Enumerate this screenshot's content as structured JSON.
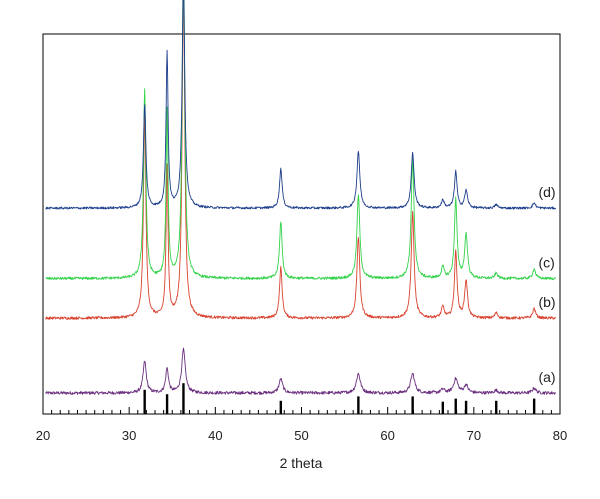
{
  "chart_data": {
    "type": "line",
    "title": "",
    "xlabel": "2 theta",
    "ylabel": "",
    "xlim": [
      20,
      80
    ],
    "x_ticks": [
      20,
      30,
      40,
      50,
      60,
      70,
      80
    ],
    "x_minor_step": 1,
    "y_ticks_shown": false,
    "grid": false,
    "legend": "labels at right end of each trace",
    "series": [
      {
        "name": "(a)",
        "color": "#6b2f7f",
        "baseline": 0.0,
        "noise": 0.0035,
        "peaks": [
          {
            "x": 31.8,
            "h": 0.072,
            "w": 0.22
          },
          {
            "x": 34.4,
            "h": 0.055,
            "w": 0.2
          },
          {
            "x": 36.3,
            "h": 0.098,
            "w": 0.25
          },
          {
            "x": 47.6,
            "h": 0.032,
            "w": 0.25
          },
          {
            "x": 56.6,
            "h": 0.044,
            "w": 0.28
          },
          {
            "x": 62.9,
            "h": 0.044,
            "w": 0.28
          },
          {
            "x": 66.4,
            "h": 0.008,
            "w": 0.25
          },
          {
            "x": 67.9,
            "h": 0.032,
            "w": 0.3
          },
          {
            "x": 69.1,
            "h": 0.018,
            "w": 0.25
          },
          {
            "x": 72.6,
            "h": 0.006,
            "w": 0.25
          },
          {
            "x": 77.0,
            "h": 0.011,
            "w": 0.25
          }
        ]
      },
      {
        "name": "(b)",
        "color": "#d9432f",
        "baseline": 0.17,
        "noise": 0.003,
        "peaks": [
          {
            "x": 31.8,
            "h": 0.46,
            "w": 0.17
          },
          {
            "x": 34.4,
            "h": 0.34,
            "w": 0.14
          },
          {
            "x": 36.3,
            "h": 0.76,
            "w": 0.18
          },
          {
            "x": 47.6,
            "h": 0.115,
            "w": 0.18
          },
          {
            "x": 56.6,
            "h": 0.185,
            "w": 0.2
          },
          {
            "x": 62.9,
            "h": 0.24,
            "w": 0.2
          },
          {
            "x": 66.4,
            "h": 0.025,
            "w": 0.2
          },
          {
            "x": 67.9,
            "h": 0.15,
            "w": 0.18
          },
          {
            "x": 69.1,
            "h": 0.085,
            "w": 0.2
          },
          {
            "x": 72.6,
            "h": 0.012,
            "w": 0.2
          },
          {
            "x": 77.0,
            "h": 0.022,
            "w": 0.2
          }
        ]
      },
      {
        "name": "(c)",
        "color": "#33d24a",
        "baseline": 0.26,
        "noise": 0.003,
        "peaks": [
          {
            "x": 31.8,
            "h": 0.43,
            "w": 0.17
          },
          {
            "x": 34.4,
            "h": 0.38,
            "w": 0.14
          },
          {
            "x": 36.3,
            "h": 0.735,
            "w": 0.18
          },
          {
            "x": 47.6,
            "h": 0.13,
            "w": 0.18
          },
          {
            "x": 56.6,
            "h": 0.19,
            "w": 0.2
          },
          {
            "x": 62.9,
            "h": 0.27,
            "w": 0.2
          },
          {
            "x": 66.4,
            "h": 0.025,
            "w": 0.2
          },
          {
            "x": 67.9,
            "h": 0.18,
            "w": 0.18
          },
          {
            "x": 69.1,
            "h": 0.1,
            "w": 0.2
          },
          {
            "x": 72.6,
            "h": 0.012,
            "w": 0.2
          },
          {
            "x": 77.0,
            "h": 0.022,
            "w": 0.2
          }
        ]
      },
      {
        "name": "(d)",
        "color": "#1e3f8c",
        "baseline": 0.42,
        "noise": 0.0025,
        "peaks": [
          {
            "x": 31.8,
            "h": 0.235,
            "w": 0.17
          },
          {
            "x": 34.4,
            "h": 0.355,
            "w": 0.14
          },
          {
            "x": 36.3,
            "h": 0.52,
            "w": 0.18
          },
          {
            "x": 47.6,
            "h": 0.09,
            "w": 0.18
          },
          {
            "x": 56.6,
            "h": 0.13,
            "w": 0.2
          },
          {
            "x": 62.9,
            "h": 0.125,
            "w": 0.2
          },
          {
            "x": 66.4,
            "h": 0.018,
            "w": 0.2
          },
          {
            "x": 67.9,
            "h": 0.083,
            "w": 0.18
          },
          {
            "x": 69.1,
            "h": 0.04,
            "w": 0.2
          },
          {
            "x": 72.6,
            "h": 0.008,
            "w": 0.2
          },
          {
            "x": 77.0,
            "h": 0.012,
            "w": 0.2
          }
        ]
      }
    ],
    "reference_lines": {
      "color": "#000000",
      "positions": [
        31.8,
        34.4,
        36.3,
        47.6,
        56.6,
        62.9,
        66.4,
        67.9,
        69.1,
        72.6,
        77.0
      ],
      "heights": [
        0.055,
        0.045,
        0.07,
        0.03,
        0.04,
        0.04,
        0.028,
        0.035,
        0.03,
        0.03,
        0.035
      ]
    }
  }
}
